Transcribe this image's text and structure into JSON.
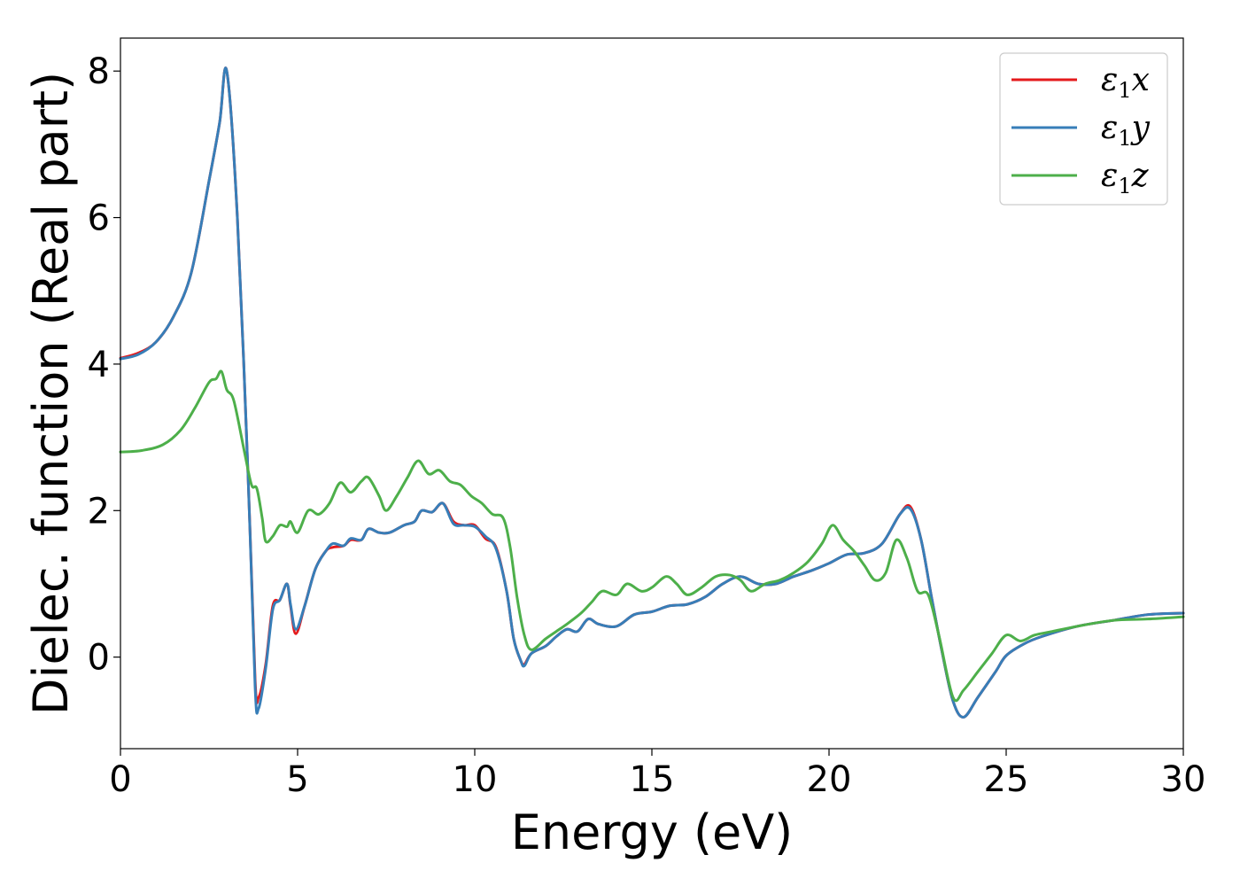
{
  "chart_data": {
    "type": "line",
    "title": "",
    "xlabel": "Energy (eV)",
    "ylabel": "Dielec. function (Real part)",
    "xlim": [
      0,
      30
    ],
    "ylim": [
      -1.25,
      8.45
    ],
    "xticks": [
      0,
      5,
      10,
      15,
      20,
      25,
      30
    ],
    "yticks": [
      0,
      2,
      4,
      6,
      8
    ],
    "grid": false,
    "legend_position": "top-right",
    "series": [
      {
        "name": "ε1x",
        "name_parts": {
          "main": "ε",
          "sub": "1",
          "tail": "x"
        },
        "color": "#e41a1c",
        "points": [
          [
            0,
            4.08
          ],
          [
            0.5,
            4.15
          ],
          [
            1,
            4.3
          ],
          [
            1.5,
            4.65
          ],
          [
            2,
            5.25
          ],
          [
            2.5,
            6.5
          ],
          [
            2.8,
            7.3
          ],
          [
            3.0,
            8.0
          ],
          [
            3.3,
            6.0
          ],
          [
            3.6,
            2.5
          ],
          [
            3.8,
            -0.3
          ],
          [
            3.9,
            -0.55
          ],
          [
            4.1,
            -0.1
          ],
          [
            4.3,
            0.7
          ],
          [
            4.5,
            0.78
          ],
          [
            4.7,
            1.0
          ],
          [
            4.8,
            0.7
          ],
          [
            4.95,
            0.32
          ],
          [
            5.2,
            0.7
          ],
          [
            5.5,
            1.2
          ],
          [
            5.8,
            1.45
          ],
          [
            6.0,
            1.5
          ],
          [
            6.3,
            1.52
          ],
          [
            6.5,
            1.6
          ],
          [
            6.8,
            1.6
          ],
          [
            7.0,
            1.75
          ],
          [
            7.3,
            1.7
          ],
          [
            7.6,
            1.7
          ],
          [
            8.0,
            1.8
          ],
          [
            8.3,
            1.85
          ],
          [
            8.5,
            2.0
          ],
          [
            8.8,
            1.98
          ],
          [
            9.1,
            2.1
          ],
          [
            9.4,
            1.85
          ],
          [
            9.7,
            1.8
          ],
          [
            10.0,
            1.8
          ],
          [
            10.3,
            1.62
          ],
          [
            10.6,
            1.5
          ],
          [
            10.9,
            0.9
          ],
          [
            11.1,
            0.25
          ],
          [
            11.3,
            -0.05
          ],
          [
            11.4,
            -0.1
          ],
          [
            11.6,
            0.05
          ],
          [
            12,
            0.15
          ],
          [
            12.3,
            0.28
          ],
          [
            12.6,
            0.38
          ],
          [
            12.9,
            0.35
          ],
          [
            13.2,
            0.52
          ],
          [
            13.5,
            0.45
          ],
          [
            14,
            0.42
          ],
          [
            14.5,
            0.58
          ],
          [
            15,
            0.62
          ],
          [
            15.5,
            0.7
          ],
          [
            16,
            0.72
          ],
          [
            16.5,
            0.82
          ],
          [
            17,
            1.0
          ],
          [
            17.5,
            1.1
          ],
          [
            18,
            1.0
          ],
          [
            18.5,
            1.0
          ],
          [
            19,
            1.1
          ],
          [
            19.5,
            1.18
          ],
          [
            20,
            1.28
          ],
          [
            20.5,
            1.4
          ],
          [
            21,
            1.42
          ],
          [
            21.5,
            1.55
          ],
          [
            22,
            1.95
          ],
          [
            22.3,
            2.05
          ],
          [
            22.6,
            1.6
          ],
          [
            22.9,
            0.8
          ],
          [
            23.2,
            0.05
          ],
          [
            23.5,
            -0.6
          ],
          [
            23.8,
            -0.82
          ],
          [
            24.2,
            -0.55
          ],
          [
            24.7,
            -0.2
          ],
          [
            25,
            0.02
          ],
          [
            25.5,
            0.18
          ],
          [
            26,
            0.28
          ],
          [
            27,
            0.42
          ],
          [
            28,
            0.5
          ],
          [
            29,
            0.58
          ],
          [
            30,
            0.6
          ]
        ]
      },
      {
        "name": "ε1y",
        "name_parts": {
          "main": "ε",
          "sub": "1",
          "tail": "y"
        },
        "color": "#377eb8",
        "points": [
          [
            0,
            4.07
          ],
          [
            0.5,
            4.13
          ],
          [
            1,
            4.3
          ],
          [
            1.5,
            4.65
          ],
          [
            2,
            5.25
          ],
          [
            2.5,
            6.5
          ],
          [
            2.8,
            7.3
          ],
          [
            3.0,
            8.0
          ],
          [
            3.3,
            6.0
          ],
          [
            3.6,
            2.5
          ],
          [
            3.8,
            -0.4
          ],
          [
            3.9,
            -0.7
          ],
          [
            4.1,
            -0.15
          ],
          [
            4.3,
            0.65
          ],
          [
            4.5,
            0.78
          ],
          [
            4.7,
            1.0
          ],
          [
            4.8,
            0.72
          ],
          [
            4.95,
            0.38
          ],
          [
            5.2,
            0.7
          ],
          [
            5.5,
            1.2
          ],
          [
            5.8,
            1.45
          ],
          [
            6.0,
            1.55
          ],
          [
            6.3,
            1.52
          ],
          [
            6.5,
            1.62
          ],
          [
            6.8,
            1.6
          ],
          [
            7.0,
            1.75
          ],
          [
            7.3,
            1.7
          ],
          [
            7.6,
            1.7
          ],
          [
            8.0,
            1.8
          ],
          [
            8.3,
            1.85
          ],
          [
            8.5,
            2.0
          ],
          [
            8.8,
            1.98
          ],
          [
            9.1,
            2.1
          ],
          [
            9.4,
            1.82
          ],
          [
            9.7,
            1.8
          ],
          [
            10.0,
            1.78
          ],
          [
            10.3,
            1.65
          ],
          [
            10.6,
            1.48
          ],
          [
            10.9,
            0.9
          ],
          [
            11.1,
            0.25
          ],
          [
            11.3,
            -0.05
          ],
          [
            11.4,
            -0.12
          ],
          [
            11.6,
            0.05
          ],
          [
            12,
            0.15
          ],
          [
            12.3,
            0.28
          ],
          [
            12.6,
            0.38
          ],
          [
            12.9,
            0.35
          ],
          [
            13.2,
            0.52
          ],
          [
            13.5,
            0.45
          ],
          [
            14,
            0.42
          ],
          [
            14.5,
            0.58
          ],
          [
            15,
            0.62
          ],
          [
            15.5,
            0.7
          ],
          [
            16,
            0.72
          ],
          [
            16.5,
            0.82
          ],
          [
            17,
            1.0
          ],
          [
            17.5,
            1.1
          ],
          [
            18,
            1.0
          ],
          [
            18.5,
            1.0
          ],
          [
            19,
            1.1
          ],
          [
            19.5,
            1.18
          ],
          [
            20,
            1.28
          ],
          [
            20.5,
            1.4
          ],
          [
            21,
            1.42
          ],
          [
            21.5,
            1.55
          ],
          [
            22,
            1.95
          ],
          [
            22.3,
            2.02
          ],
          [
            22.6,
            1.6
          ],
          [
            22.9,
            0.8
          ],
          [
            23.2,
            0.05
          ],
          [
            23.5,
            -0.6
          ],
          [
            23.8,
            -0.82
          ],
          [
            24.2,
            -0.55
          ],
          [
            24.7,
            -0.2
          ],
          [
            25,
            0.02
          ],
          [
            25.5,
            0.18
          ],
          [
            26,
            0.28
          ],
          [
            27,
            0.42
          ],
          [
            28,
            0.5
          ],
          [
            29,
            0.58
          ],
          [
            30,
            0.6
          ]
        ]
      },
      {
        "name": "ε1z",
        "name_parts": {
          "main": "ε",
          "sub": "1",
          "tail": "z"
        },
        "color": "#4daf4a",
        "points": [
          [
            0,
            2.8
          ],
          [
            0.6,
            2.82
          ],
          [
            1.2,
            2.9
          ],
          [
            1.7,
            3.1
          ],
          [
            2.1,
            3.4
          ],
          [
            2.5,
            3.75
          ],
          [
            2.7,
            3.8
          ],
          [
            2.85,
            3.9
          ],
          [
            3.0,
            3.65
          ],
          [
            3.2,
            3.5
          ],
          [
            3.5,
            2.8
          ],
          [
            3.7,
            2.35
          ],
          [
            3.85,
            2.3
          ],
          [
            4.0,
            1.9
          ],
          [
            4.1,
            1.58
          ],
          [
            4.3,
            1.65
          ],
          [
            4.5,
            1.8
          ],
          [
            4.7,
            1.78
          ],
          [
            4.8,
            1.85
          ],
          [
            5.0,
            1.7
          ],
          [
            5.3,
            2.0
          ],
          [
            5.6,
            1.95
          ],
          [
            5.9,
            2.1
          ],
          [
            6.2,
            2.38
          ],
          [
            6.5,
            2.25
          ],
          [
            6.8,
            2.4
          ],
          [
            7.0,
            2.45
          ],
          [
            7.3,
            2.2
          ],
          [
            7.5,
            2.0
          ],
          [
            7.8,
            2.2
          ],
          [
            8.1,
            2.45
          ],
          [
            8.4,
            2.68
          ],
          [
            8.7,
            2.5
          ],
          [
            9.0,
            2.55
          ],
          [
            9.3,
            2.4
          ],
          [
            9.6,
            2.35
          ],
          [
            9.9,
            2.2
          ],
          [
            10.2,
            2.1
          ],
          [
            10.5,
            1.95
          ],
          [
            10.8,
            1.9
          ],
          [
            11.0,
            1.5
          ],
          [
            11.2,
            0.8
          ],
          [
            11.4,
            0.3
          ],
          [
            11.6,
            0.1
          ],
          [
            12.0,
            0.25
          ],
          [
            12.3,
            0.35
          ],
          [
            12.6,
            0.45
          ],
          [
            13.0,
            0.6
          ],
          [
            13.3,
            0.75
          ],
          [
            13.6,
            0.9
          ],
          [
            14.0,
            0.85
          ],
          [
            14.3,
            1.0
          ],
          [
            14.7,
            0.9
          ],
          [
            15.0,
            0.95
          ],
          [
            15.4,
            1.1
          ],
          [
            15.7,
            1.0
          ],
          [
            16.0,
            0.85
          ],
          [
            16.4,
            0.95
          ],
          [
            16.8,
            1.1
          ],
          [
            17.2,
            1.12
          ],
          [
            17.5,
            1.05
          ],
          [
            17.8,
            0.9
          ],
          [
            18.2,
            1.0
          ],
          [
            18.6,
            1.05
          ],
          [
            19.0,
            1.15
          ],
          [
            19.4,
            1.3
          ],
          [
            19.8,
            1.55
          ],
          [
            20.1,
            1.8
          ],
          [
            20.4,
            1.6
          ],
          [
            20.7,
            1.45
          ],
          [
            21.0,
            1.25
          ],
          [
            21.3,
            1.05
          ],
          [
            21.6,
            1.15
          ],
          [
            21.9,
            1.6
          ],
          [
            22.2,
            1.35
          ],
          [
            22.5,
            0.9
          ],
          [
            22.8,
            0.85
          ],
          [
            23.1,
            0.3
          ],
          [
            23.5,
            -0.55
          ],
          [
            23.8,
            -0.45
          ],
          [
            24.2,
            -0.2
          ],
          [
            24.6,
            0.05
          ],
          [
            25.0,
            0.3
          ],
          [
            25.4,
            0.22
          ],
          [
            25.8,
            0.3
          ],
          [
            26.3,
            0.35
          ],
          [
            27,
            0.42
          ],
          [
            28,
            0.5
          ],
          [
            29,
            0.52
          ],
          [
            30,
            0.55
          ]
        ]
      }
    ]
  }
}
